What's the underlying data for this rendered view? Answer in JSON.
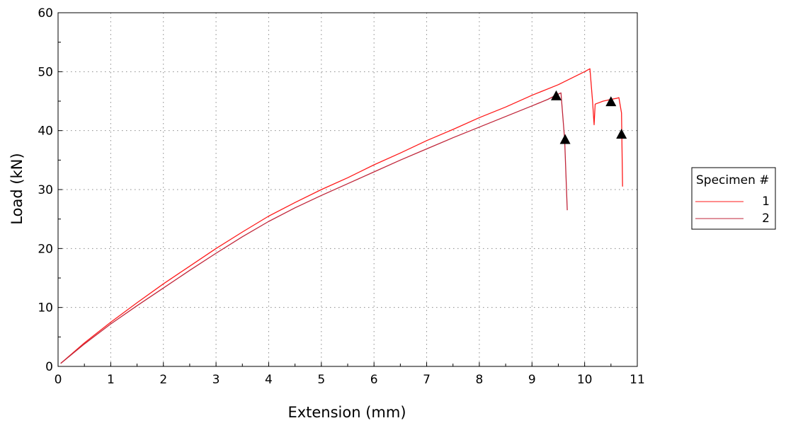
{
  "chart_data": {
    "type": "line",
    "xlabel": "Extension (mm)",
    "ylabel": "Load (kN)",
    "xlim": [
      0,
      11
    ],
    "ylim": [
      0,
      60
    ],
    "xticks": [
      "0",
      "1",
      "2",
      "3",
      "4",
      "5",
      "6",
      "7",
      "8",
      "9",
      "10",
      "11"
    ],
    "yticks": [
      "0",
      "10",
      "20",
      "30",
      "40",
      "50",
      "60"
    ],
    "grid": "dotted",
    "legend": {
      "title": "Specimen #",
      "placement": "right",
      "entries": [
        "1",
        "2"
      ]
    },
    "series": [
      {
        "name": "1",
        "color": "#ff1a1a",
        "points": [
          [
            0.05,
            0.5
          ],
          [
            0.5,
            4.0
          ],
          [
            1.0,
            7.5
          ],
          [
            1.5,
            10.8
          ],
          [
            2.0,
            14.0
          ],
          [
            2.5,
            17.0
          ],
          [
            3.0,
            20.0
          ],
          [
            3.5,
            22.8
          ],
          [
            4.0,
            25.5
          ],
          [
            4.5,
            27.8
          ],
          [
            5.0,
            30.0
          ],
          [
            5.5,
            32.0
          ],
          [
            6.0,
            34.2
          ],
          [
            6.5,
            36.2
          ],
          [
            7.0,
            38.3
          ],
          [
            7.5,
            40.2
          ],
          [
            8.0,
            42.2
          ],
          [
            8.5,
            44.0
          ],
          [
            9.0,
            46.0
          ],
          [
            9.5,
            47.8
          ],
          [
            10.0,
            50.0
          ],
          [
            10.1,
            50.5
          ],
          [
            10.15,
            45.0
          ],
          [
            10.18,
            41.0
          ],
          [
            10.2,
            44.5
          ],
          [
            10.35,
            45.0
          ],
          [
            10.5,
            45.3
          ],
          [
            10.62,
            45.5
          ],
          [
            10.65,
            45.6
          ],
          [
            10.7,
            43.0
          ],
          [
            10.72,
            30.5
          ]
        ]
      },
      {
        "name": "2",
        "color": "#c0263a",
        "points": [
          [
            0.05,
            0.5
          ],
          [
            0.5,
            3.8
          ],
          [
            1.0,
            7.2
          ],
          [
            1.5,
            10.3
          ],
          [
            2.0,
            13.3
          ],
          [
            2.5,
            16.3
          ],
          [
            3.0,
            19.2
          ],
          [
            3.5,
            22.0
          ],
          [
            4.0,
            24.6
          ],
          [
            4.5,
            26.9
          ],
          [
            5.0,
            29.0
          ],
          [
            5.5,
            31.0
          ],
          [
            6.0,
            33.0
          ],
          [
            6.5,
            35.0
          ],
          [
            7.0,
            36.9
          ],
          [
            7.5,
            38.8
          ],
          [
            8.0,
            40.6
          ],
          [
            8.5,
            42.4
          ],
          [
            9.0,
            44.2
          ],
          [
            9.3,
            45.3
          ],
          [
            9.5,
            46.2
          ],
          [
            9.55,
            46.4
          ],
          [
            9.62,
            38.5
          ],
          [
            9.67,
            26.5
          ]
        ]
      }
    ],
    "markers": {
      "shape": "triangle",
      "color": "#000000",
      "points": [
        [
          9.46,
          45.9
        ],
        [
          9.63,
          38.5
        ],
        [
          10.5,
          44.9
        ],
        [
          10.7,
          39.4
        ]
      ]
    }
  }
}
